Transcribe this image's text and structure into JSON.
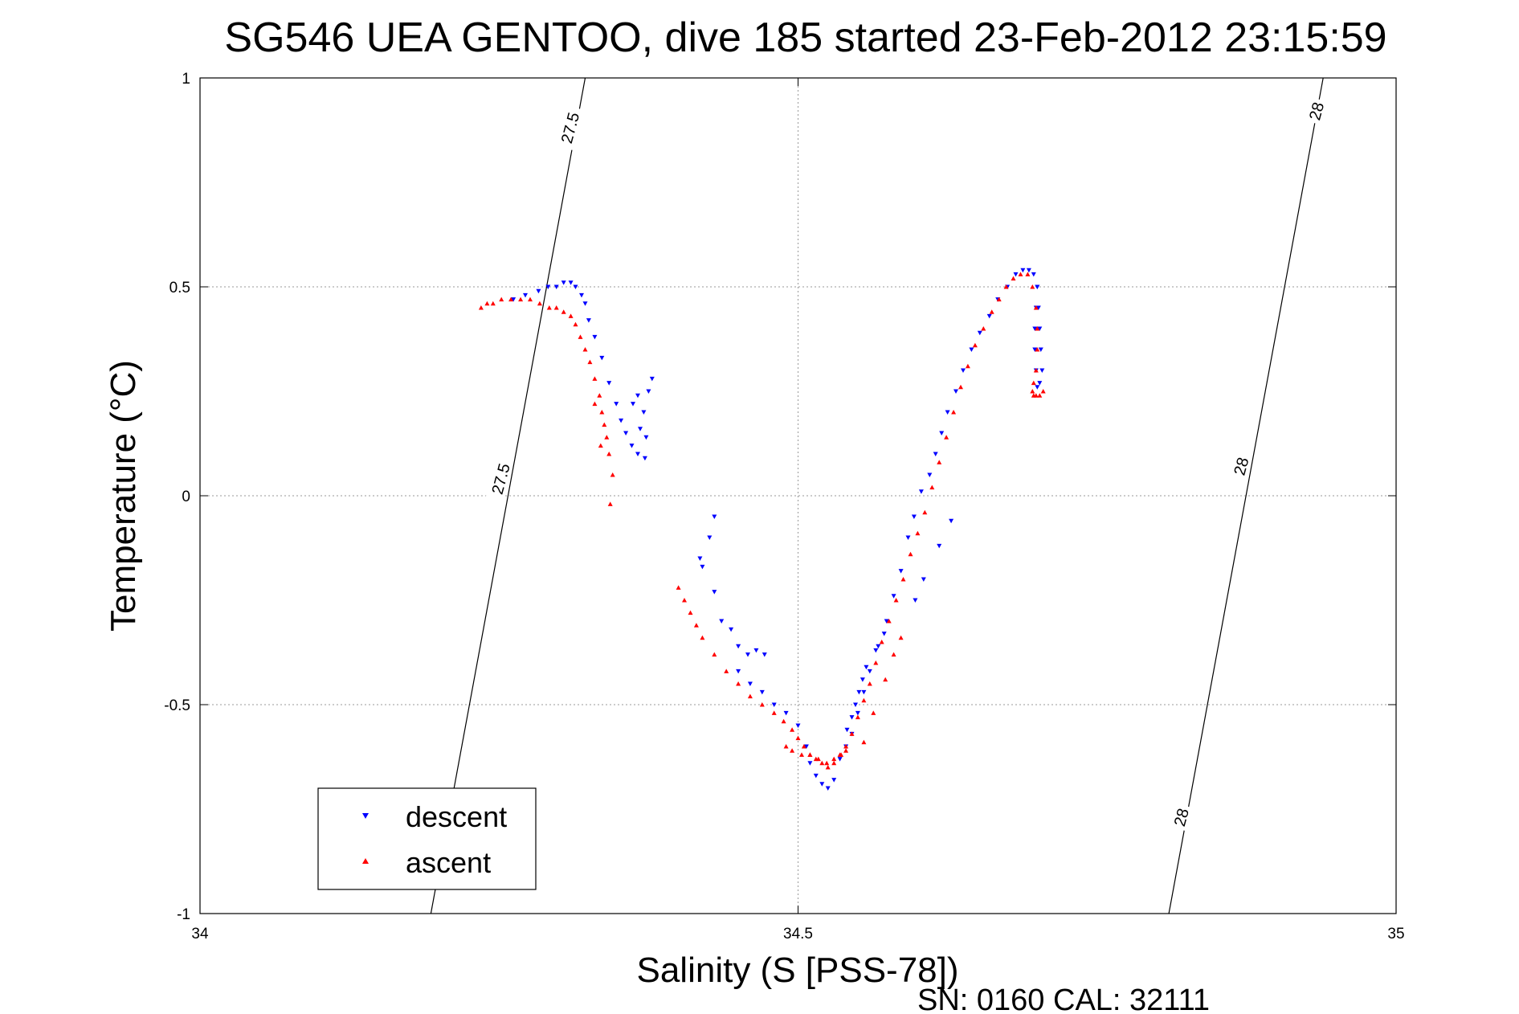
{
  "chart_data": {
    "type": "scatter",
    "title": "SG546 UEA GENTOO, dive 185 started 23-Feb-2012 23:15:59",
    "xlabel": "Salinity (S [PSS-78])",
    "ylabel": "Temperature (°C)",
    "xlim": [
      34,
      35
    ],
    "ylim": [
      -1,
      1
    ],
    "xticks": [
      "34",
      "34.5",
      "35"
    ],
    "yticks": [
      "-1",
      "-0.5",
      "0",
      "0.5",
      "1"
    ],
    "grid": true,
    "legend_position": "bottom-left",
    "footer": "SN: 0160  CAL: 32111",
    "isopycnals": [
      {
        "label": "27.5",
        "points": [
          [
            34.193,
            -1.0
          ],
          [
            34.322,
            1.0
          ]
        ]
      },
      {
        "label": "28",
        "points": [
          [
            34.81,
            -1.0
          ],
          [
            34.939,
            1.0
          ]
        ]
      }
    ],
    "isopycnal_labels": [
      {
        "text": "27.5",
        "x": 34.31,
        "y": 0.88
      },
      {
        "text": "27.5",
        "x": 34.252,
        "y": 0.04
      },
      {
        "text": "28",
        "x": 34.934,
        "y": 0.92
      },
      {
        "text": "28",
        "x": 34.871,
        "y": 0.07
      },
      {
        "text": "28",
        "x": 34.821,
        "y": -0.77
      }
    ],
    "series": [
      {
        "name": "descent",
        "color": "#0000ff",
        "marker": "triangle-down",
        "x": [
          34.262,
          34.272,
          34.283,
          34.291,
          34.298,
          34.304,
          34.31,
          34.314,
          34.319,
          34.322,
          34.325,
          34.33,
          34.336,
          34.342,
          34.348,
          34.352,
          34.356,
          34.361,
          34.366,
          34.372,
          34.375,
          34.371,
          34.366,
          34.373,
          34.378,
          34.368,
          34.362,
          34.43,
          34.426,
          34.42,
          34.418,
          34.43,
          34.436,
          34.444,
          34.45,
          34.458,
          34.465,
          34.472,
          34.45,
          34.46,
          34.47,
          34.48,
          34.49,
          34.5,
          34.507,
          34.51,
          34.515,
          34.52,
          34.525,
          34.53,
          34.535,
          34.54,
          34.545,
          34.55,
          34.555,
          34.56,
          34.567,
          34.574,
          34.58,
          34.586,
          34.592,
          34.597,
          34.603,
          34.61,
          34.615,
          34.62,
          34.625,
          34.632,
          34.638,
          34.645,
          34.652,
          34.66,
          34.667,
          34.675,
          34.682,
          34.688,
          34.693,
          34.697,
          34.7,
          34.701,
          34.702,
          34.703,
          34.704,
          34.702,
          34.7,
          34.699,
          34.698,
          34.698,
          34.699,
          34.7,
          34.541,
          34.545,
          34.548,
          34.551,
          34.554,
          34.557,
          34.565,
          34.572,
          34.598,
          34.605,
          34.618,
          34.628
        ],
        "y": [
          0.47,
          0.48,
          0.49,
          0.5,
          0.5,
          0.51,
          0.51,
          0.5,
          0.48,
          0.46,
          0.42,
          0.38,
          0.33,
          0.27,
          0.22,
          0.18,
          0.15,
          0.12,
          0.1,
          0.09,
          0.25,
          0.2,
          0.24,
          0.14,
          0.28,
          0.16,
          0.22,
          -0.05,
          -0.1,
          -0.17,
          -0.15,
          -0.23,
          -0.3,
          -0.32,
          -0.36,
          -0.38,
          -0.37,
          -0.38,
          -0.42,
          -0.45,
          -0.47,
          -0.5,
          -0.52,
          -0.55,
          -0.6,
          -0.64,
          -0.67,
          -0.69,
          -0.7,
          -0.68,
          -0.63,
          -0.6,
          -0.57,
          -0.52,
          -0.47,
          -0.42,
          -0.36,
          -0.3,
          -0.24,
          -0.18,
          -0.1,
          -0.05,
          0.01,
          0.05,
          0.1,
          0.15,
          0.2,
          0.25,
          0.3,
          0.35,
          0.39,
          0.43,
          0.47,
          0.5,
          0.53,
          0.54,
          0.54,
          0.53,
          0.5,
          0.45,
          0.4,
          0.35,
          0.3,
          0.27,
          0.26,
          0.3,
          0.35,
          0.4,
          0.45,
          0.5,
          -0.56,
          -0.53,
          -0.5,
          -0.47,
          -0.44,
          -0.41,
          -0.37,
          -0.33,
          -0.25,
          -0.2,
          -0.12,
          -0.06
        ]
      },
      {
        "name": "ascent",
        "color": "#ff0000",
        "marker": "triangle-up",
        "x": [
          34.235,
          34.24,
          34.245,
          34.252,
          34.26,
          34.268,
          34.276,
          34.284,
          34.292,
          34.298,
          34.304,
          34.31,
          34.314,
          34.318,
          34.322,
          34.326,
          34.33,
          34.334,
          34.336,
          34.338,
          34.34,
          34.342,
          34.345,
          34.33,
          34.335,
          34.343,
          34.4,
          34.405,
          34.41,
          34.415,
          34.42,
          34.43,
          34.44,
          34.45,
          34.46,
          34.47,
          34.48,
          34.488,
          34.495,
          34.5,
          34.505,
          34.51,
          34.515,
          34.52,
          34.525,
          34.53,
          34.535,
          34.54,
          34.545,
          34.55,
          34.555,
          34.56,
          34.565,
          34.57,
          34.576,
          34.582,
          34.588,
          34.594,
          34.6,
          34.606,
          34.612,
          34.618,
          34.624,
          34.63,
          34.636,
          34.642,
          34.648,
          34.655,
          34.662,
          34.668,
          34.674,
          34.68,
          34.686,
          34.692,
          34.696,
          34.699,
          34.7,
          34.7,
          34.699,
          34.697,
          34.696,
          34.697,
          34.699,
          34.702,
          34.705,
          34.555,
          34.563,
          34.573,
          34.58,
          34.586,
          34.49,
          34.495,
          34.503,
          34.51,
          34.517,
          34.524,
          34.53,
          34.536,
          34.54
        ],
        "y": [
          0.45,
          0.46,
          0.46,
          0.47,
          0.47,
          0.47,
          0.47,
          0.46,
          0.45,
          0.45,
          0.44,
          0.43,
          0.41,
          0.38,
          0.35,
          0.32,
          0.28,
          0.24,
          0.2,
          0.17,
          0.14,
          0.1,
          0.05,
          0.22,
          0.12,
          -0.02,
          -0.22,
          -0.25,
          -0.28,
          -0.31,
          -0.34,
          -0.38,
          -0.42,
          -0.45,
          -0.48,
          -0.5,
          -0.52,
          -0.54,
          -0.56,
          -0.58,
          -0.6,
          -0.62,
          -0.63,
          -0.64,
          -0.65,
          -0.64,
          -0.62,
          -0.6,
          -0.57,
          -0.53,
          -0.49,
          -0.45,
          -0.4,
          -0.35,
          -0.3,
          -0.25,
          -0.2,
          -0.14,
          -0.09,
          -0.04,
          0.02,
          0.08,
          0.14,
          0.2,
          0.26,
          0.31,
          0.36,
          0.4,
          0.44,
          0.47,
          0.5,
          0.52,
          0.53,
          0.53,
          0.5,
          0.45,
          0.4,
          0.35,
          0.3,
          0.27,
          0.25,
          0.24,
          0.24,
          0.24,
          0.25,
          -0.59,
          -0.52,
          -0.44,
          -0.38,
          -0.34,
          -0.6,
          -0.61,
          -0.62,
          -0.62,
          -0.63,
          -0.64,
          -0.63,
          -0.62,
          -0.61
        ]
      }
    ]
  }
}
